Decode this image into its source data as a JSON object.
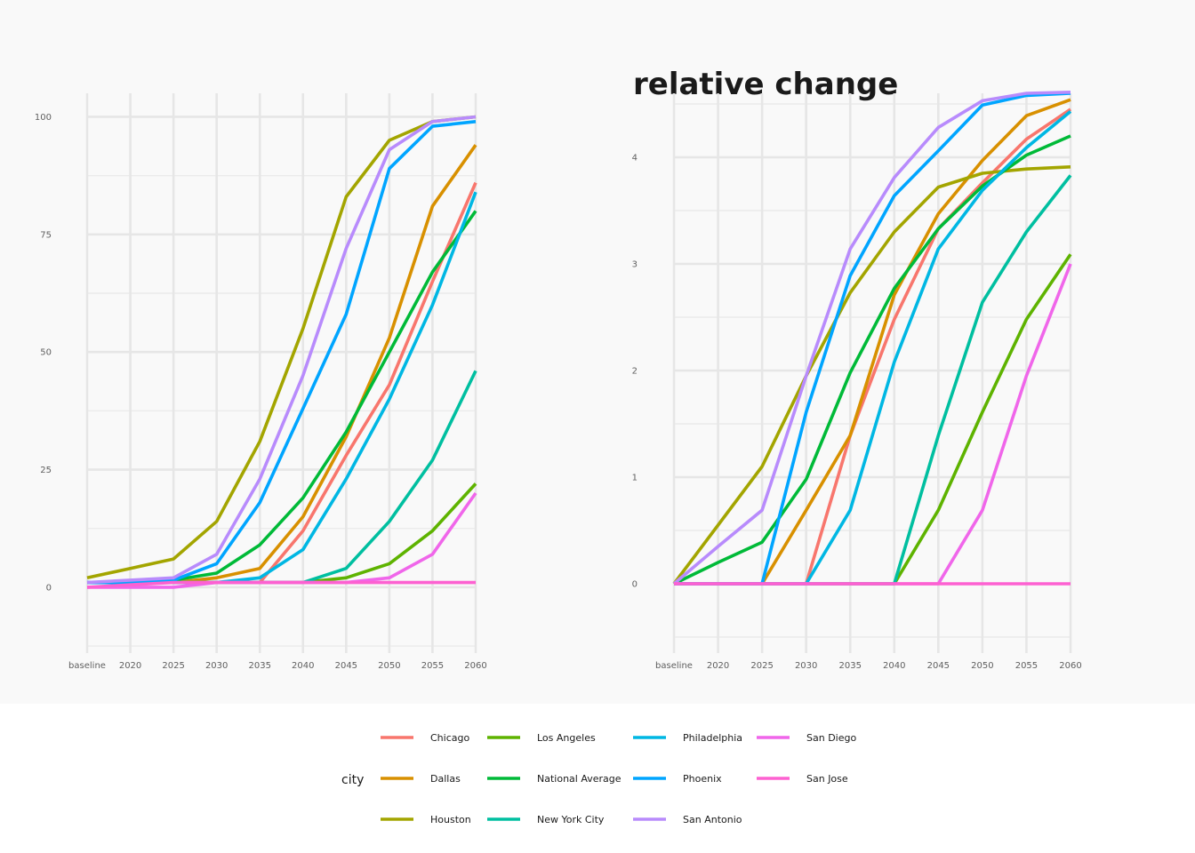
{
  "chart_data": [
    {
      "type": "line",
      "title": "",
      "xlabel": "",
      "ylabel": "",
      "categories": [
        "baseline",
        "2020",
        "2025",
        "2030",
        "2035",
        "2040",
        "2045",
        "2050",
        "2055",
        "2060"
      ],
      "y_ticks": [
        0,
        25,
        50,
        75,
        100
      ],
      "ylim": [
        -14,
        105
      ],
      "grid": true,
      "series": [
        {
          "name": "Chicago",
          "color": "#F8766D",
          "values": [
            1,
            1,
            1,
            1,
            1,
            12,
            28,
            43,
            65,
            86
          ]
        },
        {
          "name": "Dallas",
          "color": "#D89000",
          "values": [
            1,
            1,
            1,
            2,
            4,
            15,
            32,
            53,
            81,
            94
          ]
        },
        {
          "name": "Houston",
          "color": "#A3A500",
          "values": [
            2,
            4,
            6,
            14,
            31,
            55,
            83,
            95,
            99,
            100
          ]
        },
        {
          "name": "Los Angeles",
          "color": "#5EB300",
          "values": [
            1,
            1,
            1,
            1,
            1,
            1,
            2,
            5,
            12,
            22
          ]
        },
        {
          "name": "National Average",
          "color": "#00BA38",
          "values": [
            1,
            1,
            1.5,
            3,
            9,
            19,
            33,
            50,
            67,
            80
          ]
        },
        {
          "name": "New York City",
          "color": "#00BFA0",
          "values": [
            1,
            1,
            1,
            1,
            1,
            1,
            4,
            14,
            27,
            46
          ]
        },
        {
          "name": "Philadelphia",
          "color": "#00B7E3",
          "values": [
            1,
            1,
            1,
            1,
            2,
            8,
            23,
            40,
            60,
            84
          ]
        },
        {
          "name": "Phoenix",
          "color": "#00A5FF",
          "values": [
            1,
            1,
            1.5,
            5,
            18,
            38,
            58,
            89,
            98,
            99
          ]
        },
        {
          "name": "San Antonio",
          "color": "#B88BFC",
          "values": [
            1,
            1.5,
            2,
            7,
            23,
            45,
            72,
            93,
            99,
            100
          ]
        },
        {
          "name": "San Diego",
          "color": "#F066EA",
          "values": [
            0,
            0,
            0,
            1,
            1,
            1,
            1,
            2,
            7,
            20
          ]
        },
        {
          "name": "San Jose",
          "color": "#FD61D1",
          "values": [
            0,
            0.5,
            1,
            1,
            1,
            1,
            1,
            1,
            1,
            1
          ]
        }
      ]
    },
    {
      "type": "line",
      "title": "relative change",
      "xlabel": "",
      "ylabel": "",
      "categories": [
        "baseline",
        "2020",
        "2025",
        "2030",
        "2035",
        "2040",
        "2045",
        "2050",
        "2055",
        "2060"
      ],
      "y_ticks": [
        0,
        1,
        2,
        3,
        4
      ],
      "ylim": [
        -0.65,
        4.6
      ],
      "grid": true,
      "series": [
        {
          "name": "Chicago",
          "color": "#F8766D",
          "values": [
            0,
            0,
            0,
            0,
            1.39,
            2.48,
            3.33,
            3.76,
            4.17,
            4.45
          ]
        },
        {
          "name": "Dallas",
          "color": "#D89000",
          "values": [
            0,
            0,
            0,
            0.69,
            1.39,
            2.71,
            3.47,
            3.97,
            4.39,
            4.54
          ]
        },
        {
          "name": "Houston",
          "color": "#A3A500",
          "values": [
            0,
            0.55,
            1.1,
            1.95,
            2.73,
            3.3,
            3.72,
            3.85,
            3.89,
            3.91
          ]
        },
        {
          "name": "Los Angeles",
          "color": "#5EB300",
          "values": [
            0,
            0,
            0,
            0,
            0,
            0,
            0.69,
            1.61,
            2.48,
            3.09
          ]
        },
        {
          "name": "National Average",
          "color": "#00BA38",
          "values": [
            0,
            0.2,
            0.39,
            0.98,
            1.98,
            2.77,
            3.33,
            3.73,
            4.02,
            4.2
          ]
        },
        {
          "name": "New York City",
          "color": "#00BFA0",
          "values": [
            0,
            0,
            0,
            0,
            0,
            0,
            1.39,
            2.64,
            3.3,
            3.83
          ]
        },
        {
          "name": "Philadelphia",
          "color": "#00B7E3",
          "values": [
            0,
            0,
            0,
            0,
            0.69,
            2.08,
            3.14,
            3.69,
            4.09,
            4.43
          ]
        },
        {
          "name": "Phoenix",
          "color": "#00A5FF",
          "values": [
            0,
            0,
            0,
            1.61,
            2.89,
            3.64,
            4.06,
            4.49,
            4.58,
            4.6
          ]
        },
        {
          "name": "San Antonio",
          "color": "#B88BFC",
          "values": [
            0,
            0.35,
            0.69,
            1.95,
            3.14,
            3.81,
            4.28,
            4.53,
            4.6,
            4.61
          ]
        },
        {
          "name": "San Diego",
          "color": "#F066EA",
          "values": [
            0,
            0,
            0,
            0,
            0,
            0,
            0,
            0.69,
            1.95,
            3.0
          ]
        },
        {
          "name": "San Jose",
          "color": "#FD61D1",
          "values": [
            0,
            0,
            0,
            0,
            0,
            0,
            0,
            0,
            0,
            0
          ]
        }
      ]
    }
  ],
  "legend": {
    "title": "city",
    "placement": "bottom",
    "columns": [
      [
        "Chicago",
        "Dallas",
        "Houston"
      ],
      [
        "Los Angeles",
        "National Average",
        "New York City"
      ],
      [
        "Philadelphia",
        "Phoenix",
        "San Antonio"
      ],
      [
        "San Diego",
        "San Jose"
      ]
    ]
  }
}
